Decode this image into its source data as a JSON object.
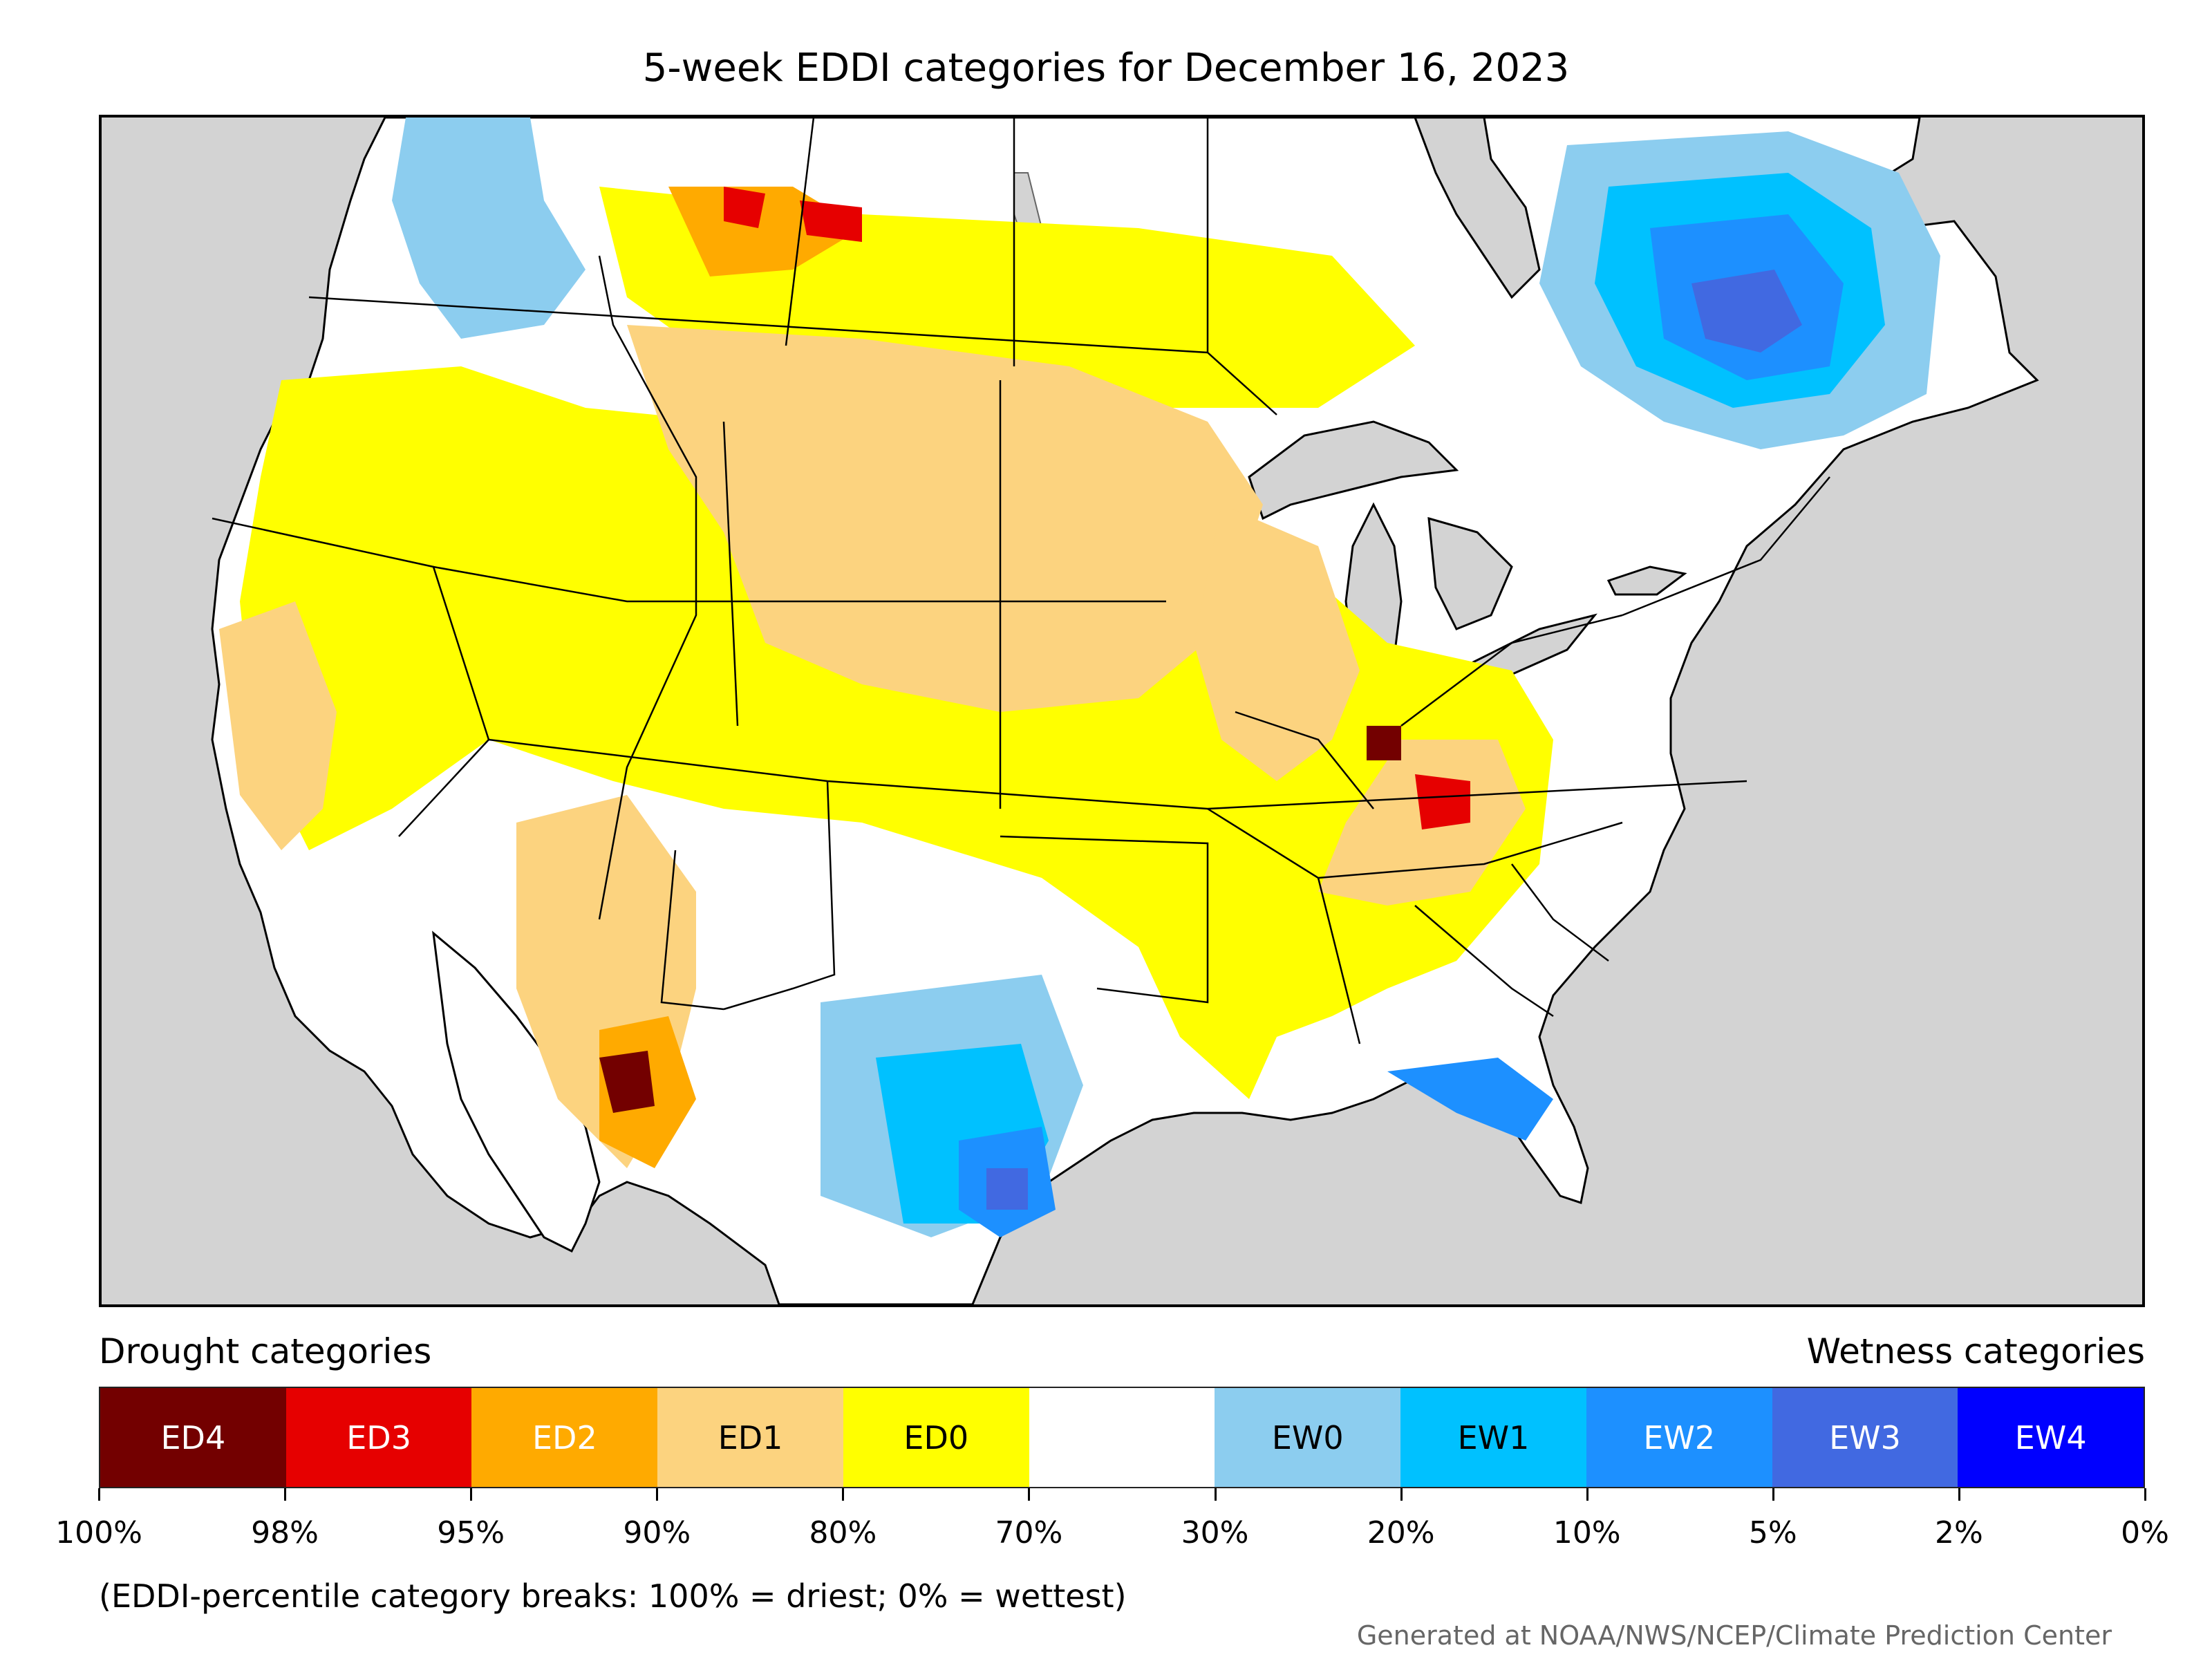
{
  "title": "5-week EDDI categories for December 16, 2023",
  "legend": {
    "drought_heading": "Drought categories",
    "wetness_heading": "Wetness categories",
    "categories": [
      {
        "label": "ED4",
        "color": "#730000",
        "text_color": "#ffffff"
      },
      {
        "label": "ED3",
        "color": "#e60000",
        "text_color": "#ffffff"
      },
      {
        "label": "ED2",
        "color": "#ffaa00",
        "text_color": "#ffffff"
      },
      {
        "label": "ED1",
        "color": "#fcd37f",
        "text_color": "#000000"
      },
      {
        "label": "ED0",
        "color": "#ffff00",
        "text_color": "#000000"
      },
      {
        "label": "",
        "color": "#ffffff",
        "text_color": "#000000"
      },
      {
        "label": "EW0",
        "color": "#8ccdef",
        "text_color": "#000000"
      },
      {
        "label": "EW1",
        "color": "#00c1ff",
        "text_color": "#000000"
      },
      {
        "label": "EW2",
        "color": "#1d90ff",
        "text_color": "#ffffff"
      },
      {
        "label": "EW3",
        "color": "#4169e1",
        "text_color": "#ffffff"
      },
      {
        "label": "EW4",
        "color": "#0000ff",
        "text_color": "#ffffff"
      }
    ],
    "tick_labels": [
      "100%",
      "98%",
      "95%",
      "90%",
      "80%",
      "70%",
      "30%",
      "20%",
      "10%",
      "5%",
      "2%",
      "0%"
    ]
  },
  "footnote": "(EDDI-percentile category breaks: 100% = driest; 0% = wettest)",
  "credit": "Generated at NOAA/NWS/NCEP/Climate Prediction Center",
  "map": {
    "ocean_color": "#d3d3d3",
    "land_color": "#ffffff",
    "boundary_color": "#000000"
  }
}
